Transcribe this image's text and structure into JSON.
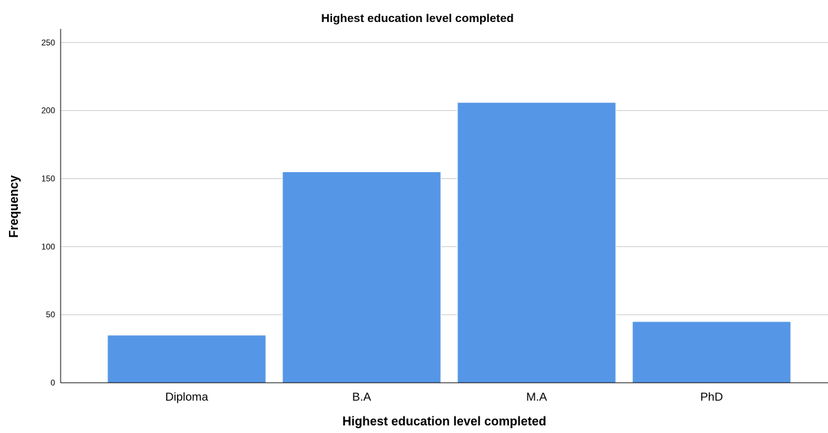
{
  "chart_data": {
    "type": "bar",
    "title": "Highest education level completed",
    "xlabel": "Highest education level completed",
    "ylabel": "Frequency",
    "categories": [
      "Diploma",
      "B.A",
      "M.A",
      "PhD"
    ],
    "values": [
      35,
      155,
      206,
      45
    ],
    "ylim": [
      0,
      260
    ],
    "yticks": [
      0,
      50,
      100,
      150,
      200,
      250
    ],
    "grid": true,
    "legend": "none",
    "bar_color": "#5596e6"
  }
}
